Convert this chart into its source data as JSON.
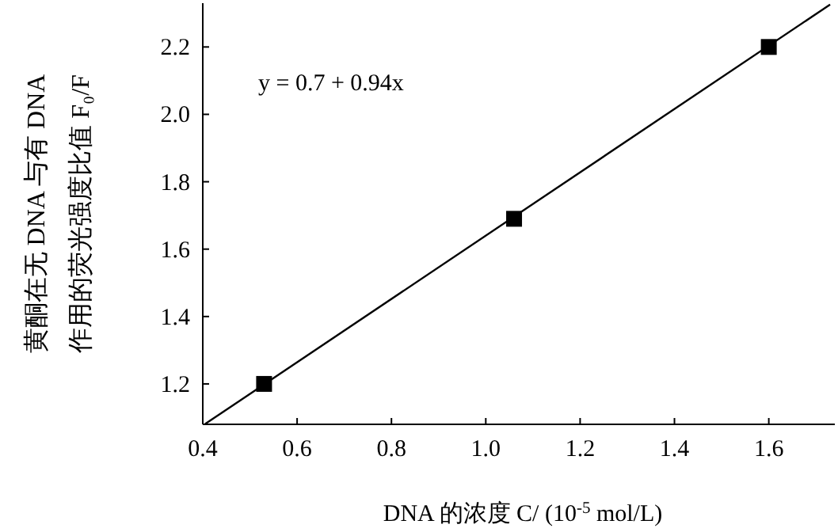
{
  "chart_data": {
    "type": "scatter",
    "xlabel": "DNA 的浓度 C/ (10$^{-5}$ mol/L)",
    "ylabel": "黄酮在无 DNA 与有 DNA 作用的荧光强度比值 F₀/F",
    "annotations": [
      "y = 0.7 + 0.94x"
    ],
    "xlim": [
      0.4,
      1.74
    ],
    "ylim": [
      1.08,
      2.33
    ],
    "xticks": [
      0.4,
      0.6,
      0.8,
      {
        "value": 1,
        "label": "1.0"
      },
      1.2,
      1.4,
      1.6
    ],
    "yticks": [
      1.2,
      1.4,
      1.6,
      1.8,
      {
        "value": 2,
        "label": "2.0"
      },
      2.2
    ],
    "series": [
      {
        "color": "#000000",
        "marker": "square",
        "x": [
          0.53,
          1.06,
          1.6
        ],
        "values": [
          1.2,
          1.69,
          2.2
        ]
      },
      {
        "type": "line",
        "marker": "none",
        "color": "#000000",
        "x": [
          0.405,
          1.73
        ],
        "values": [
          1.081,
          2.326
        ]
      }
    ]
  }
}
